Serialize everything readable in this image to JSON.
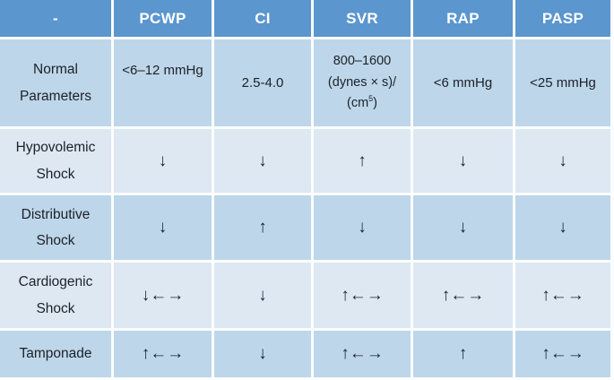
{
  "colors": {
    "header_bg": "#5b96ce",
    "row_medium": "#bdd6ea",
    "row_light": "#dde8f3",
    "grid_line": "#fbfdfe",
    "header_text": "#ffffff",
    "body_text": "#1c2127"
  },
  "chart_data": {
    "type": "table",
    "columns": [
      "-",
      "PCWP",
      "CI",
      "SVR",
      "RAP",
      "PASP"
    ],
    "rows": [
      [
        "Normal Parameters",
        "<6–12 mmHg",
        "2.5-4.0",
        "800–1600 (dynes × s)/(cm5)",
        "<6 mmHg",
        "<25 mmHg"
      ],
      [
        "Hypovolemic Shock",
        "↓",
        "↓",
        "↑",
        "↓",
        "↓"
      ],
      [
        "Distributive Shock",
        "↓",
        "↑",
        "↓",
        "↓",
        "↓"
      ],
      [
        "Cardiogenic Shock",
        "↓←→",
        "↓",
        "↑←→",
        "↑←→",
        "↑←→"
      ],
      [
        "Tamponade",
        "↑←→",
        "↓",
        "↑←→",
        "↑",
        "↑←→"
      ]
    ]
  },
  "table": {
    "header": {
      "c0": "-",
      "c1": "PCWP",
      "c2": "CI",
      "c3": "SVR",
      "c4": "RAP",
      "c5": "PASP"
    },
    "normal": {
      "label_line1": "Normal",
      "label_line2": "Parameters",
      "pcwp": "<6–12 mmHg",
      "ci": "2.5-4.0",
      "svr_line1": "800–1600",
      "svr_line2": "(dynes × s)/",
      "svr_line3_pre": "(cm",
      "svr_line3_sup": "5",
      "svr_line3_post": ")",
      "rap": "<6 mmHg",
      "pasp": "<25 mmHg"
    },
    "hypovolemic": {
      "label_line1": "Hypovolemic",
      "label_line2": "Shock",
      "pcwp": "↓",
      "ci": "↓",
      "svr": "↑",
      "rap": "↓",
      "pasp": "↓"
    },
    "distributive": {
      "label_line1": "Distributive",
      "label_line2": "Shock",
      "pcwp": "↓",
      "ci": "↑",
      "svr": "↓",
      "rap": "↓",
      "pasp": "↓"
    },
    "cardiogenic": {
      "label_line1": "Cardiogenic",
      "label_line2": "Shock",
      "pcwp": "↓←→",
      "ci": "↓",
      "svr": "↑←→",
      "rap": "↑←→",
      "pasp": "↑←→"
    },
    "tamponade": {
      "label": "Tamponade",
      "pcwp": "↑←→",
      "ci": "↓",
      "svr": "↑←→",
      "rap": "↑",
      "pasp": "↑←→"
    }
  }
}
